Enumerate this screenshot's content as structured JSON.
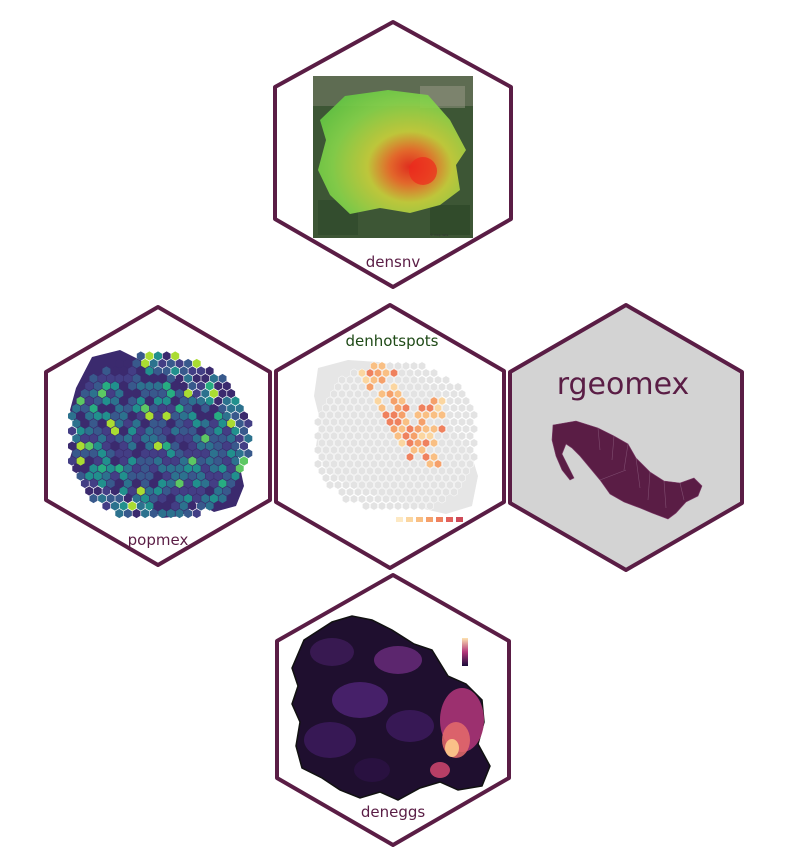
{
  "hexes": {
    "densnv": {
      "label": "densnv"
    },
    "denhotspots": {
      "label": "denhotspots"
    },
    "popmex": {
      "label": "popmex"
    },
    "rgeomex": {
      "label": "rgeomex"
    },
    "deneggs": {
      "label": "deneggs"
    }
  },
  "colors": {
    "hex_stroke": "#5a1d45",
    "rgeomex_fill": "#d3d3d3",
    "mexico_fill": "#5a1d45",
    "label_purple": "#5a1d45",
    "label_green": "#1f4a17"
  }
}
